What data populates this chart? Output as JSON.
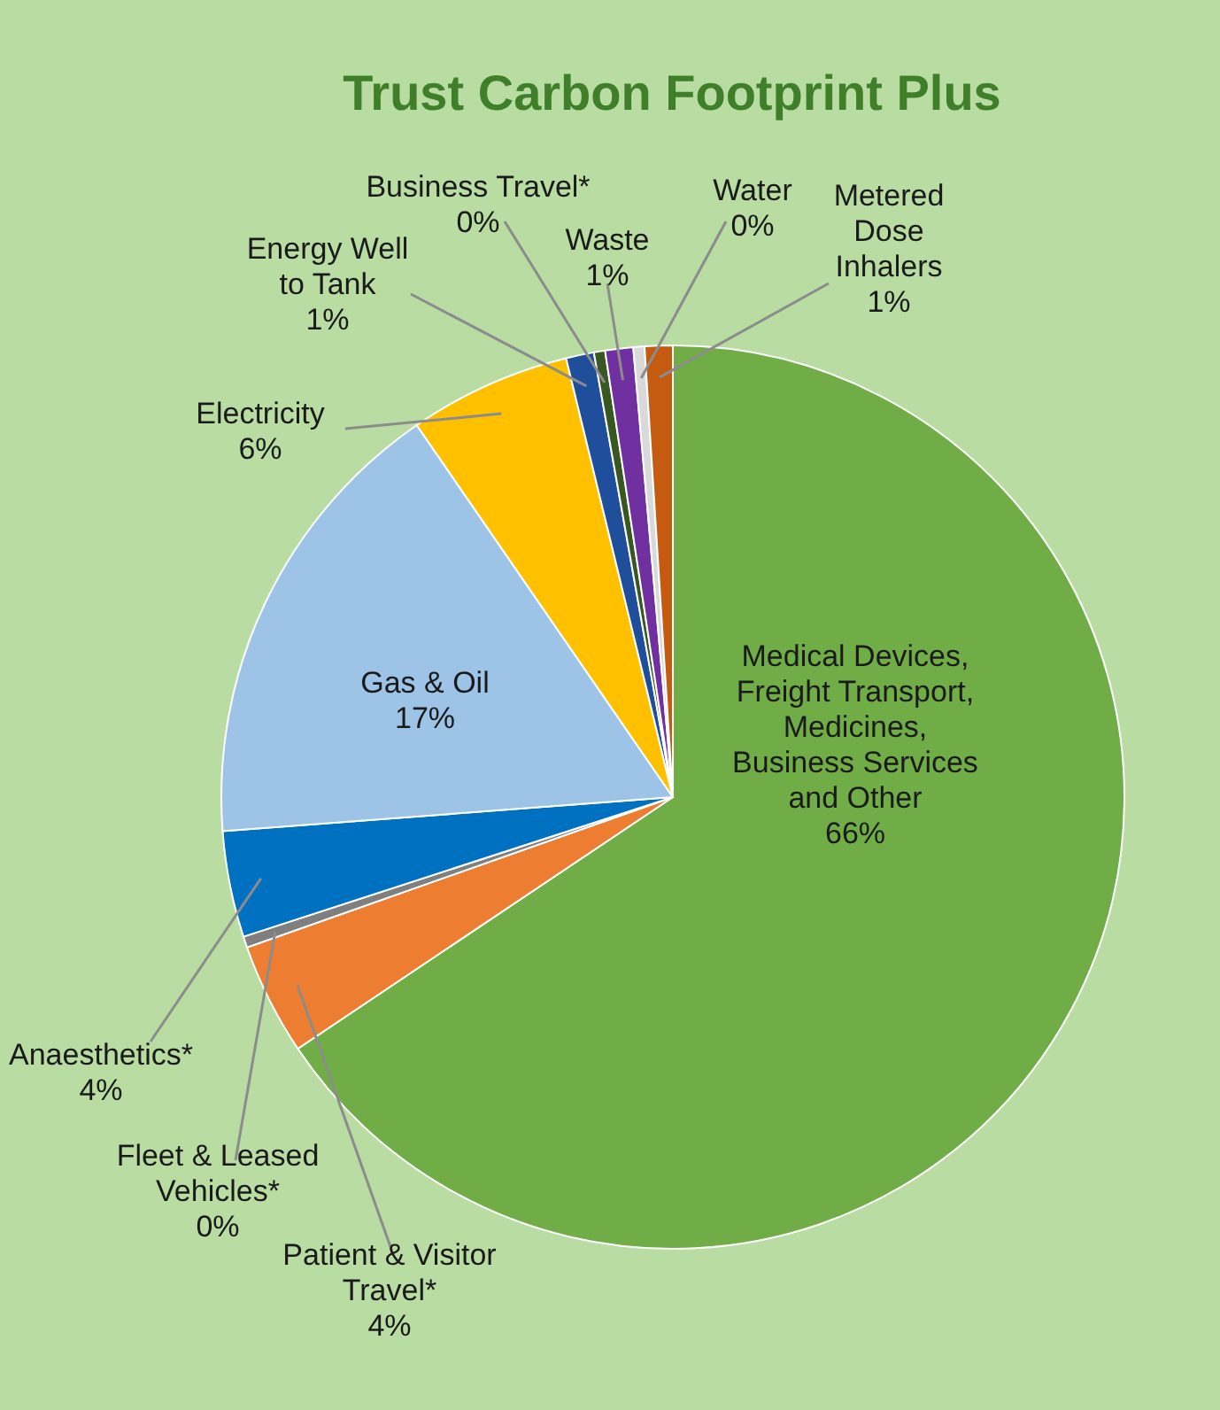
{
  "chart_data": {
    "type": "pie",
    "title": "Trust Carbon Footprint Plus",
    "categories": [
      "Medical Devices, Freight Transport, Medicines, Business Services and Other",
      "Patient & Visitor Travel*",
      "Fleet & Leased Vehicles*",
      "Anaesthetics*",
      "Gas & Oil",
      "Electricity",
      "Energy Well to Tank",
      "Business Travel*",
      "Waste",
      "Water",
      "Metered Dose Inhalers"
    ],
    "values": [
      65.6,
      4,
      0.4,
      3.8,
      16.6,
      5.8,
      1,
      0.4,
      1,
      0.4,
      1
    ],
    "value_labels": [
      "66%",
      "4%",
      "0%",
      "4%",
      "17%",
      "6%",
      "1%",
      "0%",
      "1%",
      "0%",
      "1%"
    ],
    "colors": [
      "#70ad47",
      "#ed7d31",
      "#7f7f7f",
      "#0070c0",
      "#9dc3e6",
      "#ffc000",
      "#1f4e9a",
      "#385723",
      "#7030a0",
      "#d9d9d9",
      "#c55a11"
    ]
  }
}
